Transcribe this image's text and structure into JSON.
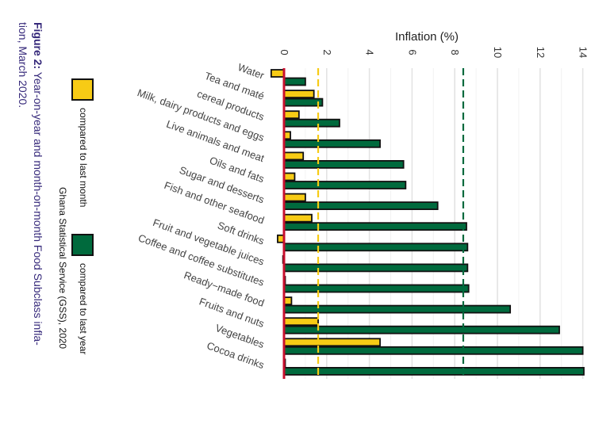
{
  "chart_data": {
    "type": "bar",
    "orientation": "horizontal, figure rotated 90 degrees clockwise",
    "xlabel": "Inflation (%)",
    "xlim": [
      -0.7,
      14.2
    ],
    "ticks": [
      "0",
      "2",
      "4",
      "6",
      "8",
      "10",
      "12",
      "14"
    ],
    "grid": true,
    "categories": [
      "Water",
      "Tea and maté",
      "cereal products",
      "Milk,  dairy products and eggs",
      "Live animals and meat",
      "Oils and fats",
      "Sugar and desserts",
      "Fish and other seafood",
      "Soft drinks",
      "Fruit and vegetable juices",
      "Coffee and coffee substitutes",
      "Ready−made food",
      "Fruits and nuts",
      "Vegetables",
      "Cocoa drinks"
    ],
    "series": [
      {
        "name": "compared to last month",
        "color": "#f7cb15",
        "values": [
          -0.6,
          1.4,
          0.7,
          0.3,
          0.9,
          0.5,
          1.0,
          1.3,
          -0.3,
          -0.05,
          0,
          0.35,
          1.6,
          4.5,
          0
        ]
      },
      {
        "name": "compared to last year",
        "color": "#006a3d",
        "values": [
          1.0,
          1.8,
          2.6,
          4.5,
          5.6,
          5.7,
          7.2,
          8.55,
          8.6,
          8.6,
          8.65,
          10.6,
          12.9,
          14.0,
          14.05
        ]
      }
    ],
    "reference_lines": [
      {
        "value": 0,
        "color": "#c8102e",
        "style": "solid"
      },
      {
        "value": 1.6,
        "color": "#f7cb15",
        "style": "dashed"
      },
      {
        "value": 8.4,
        "color": "#006a3d",
        "style": "dashed"
      }
    ],
    "legend_placement": "left"
  },
  "source": "Ghana Statistical Service (GSS), 2020",
  "caption": {
    "label": "Figure 2:",
    "line1": " Year-on-year and month-on-month Food Subclass infla-",
    "line2": "tion, March 2020."
  }
}
